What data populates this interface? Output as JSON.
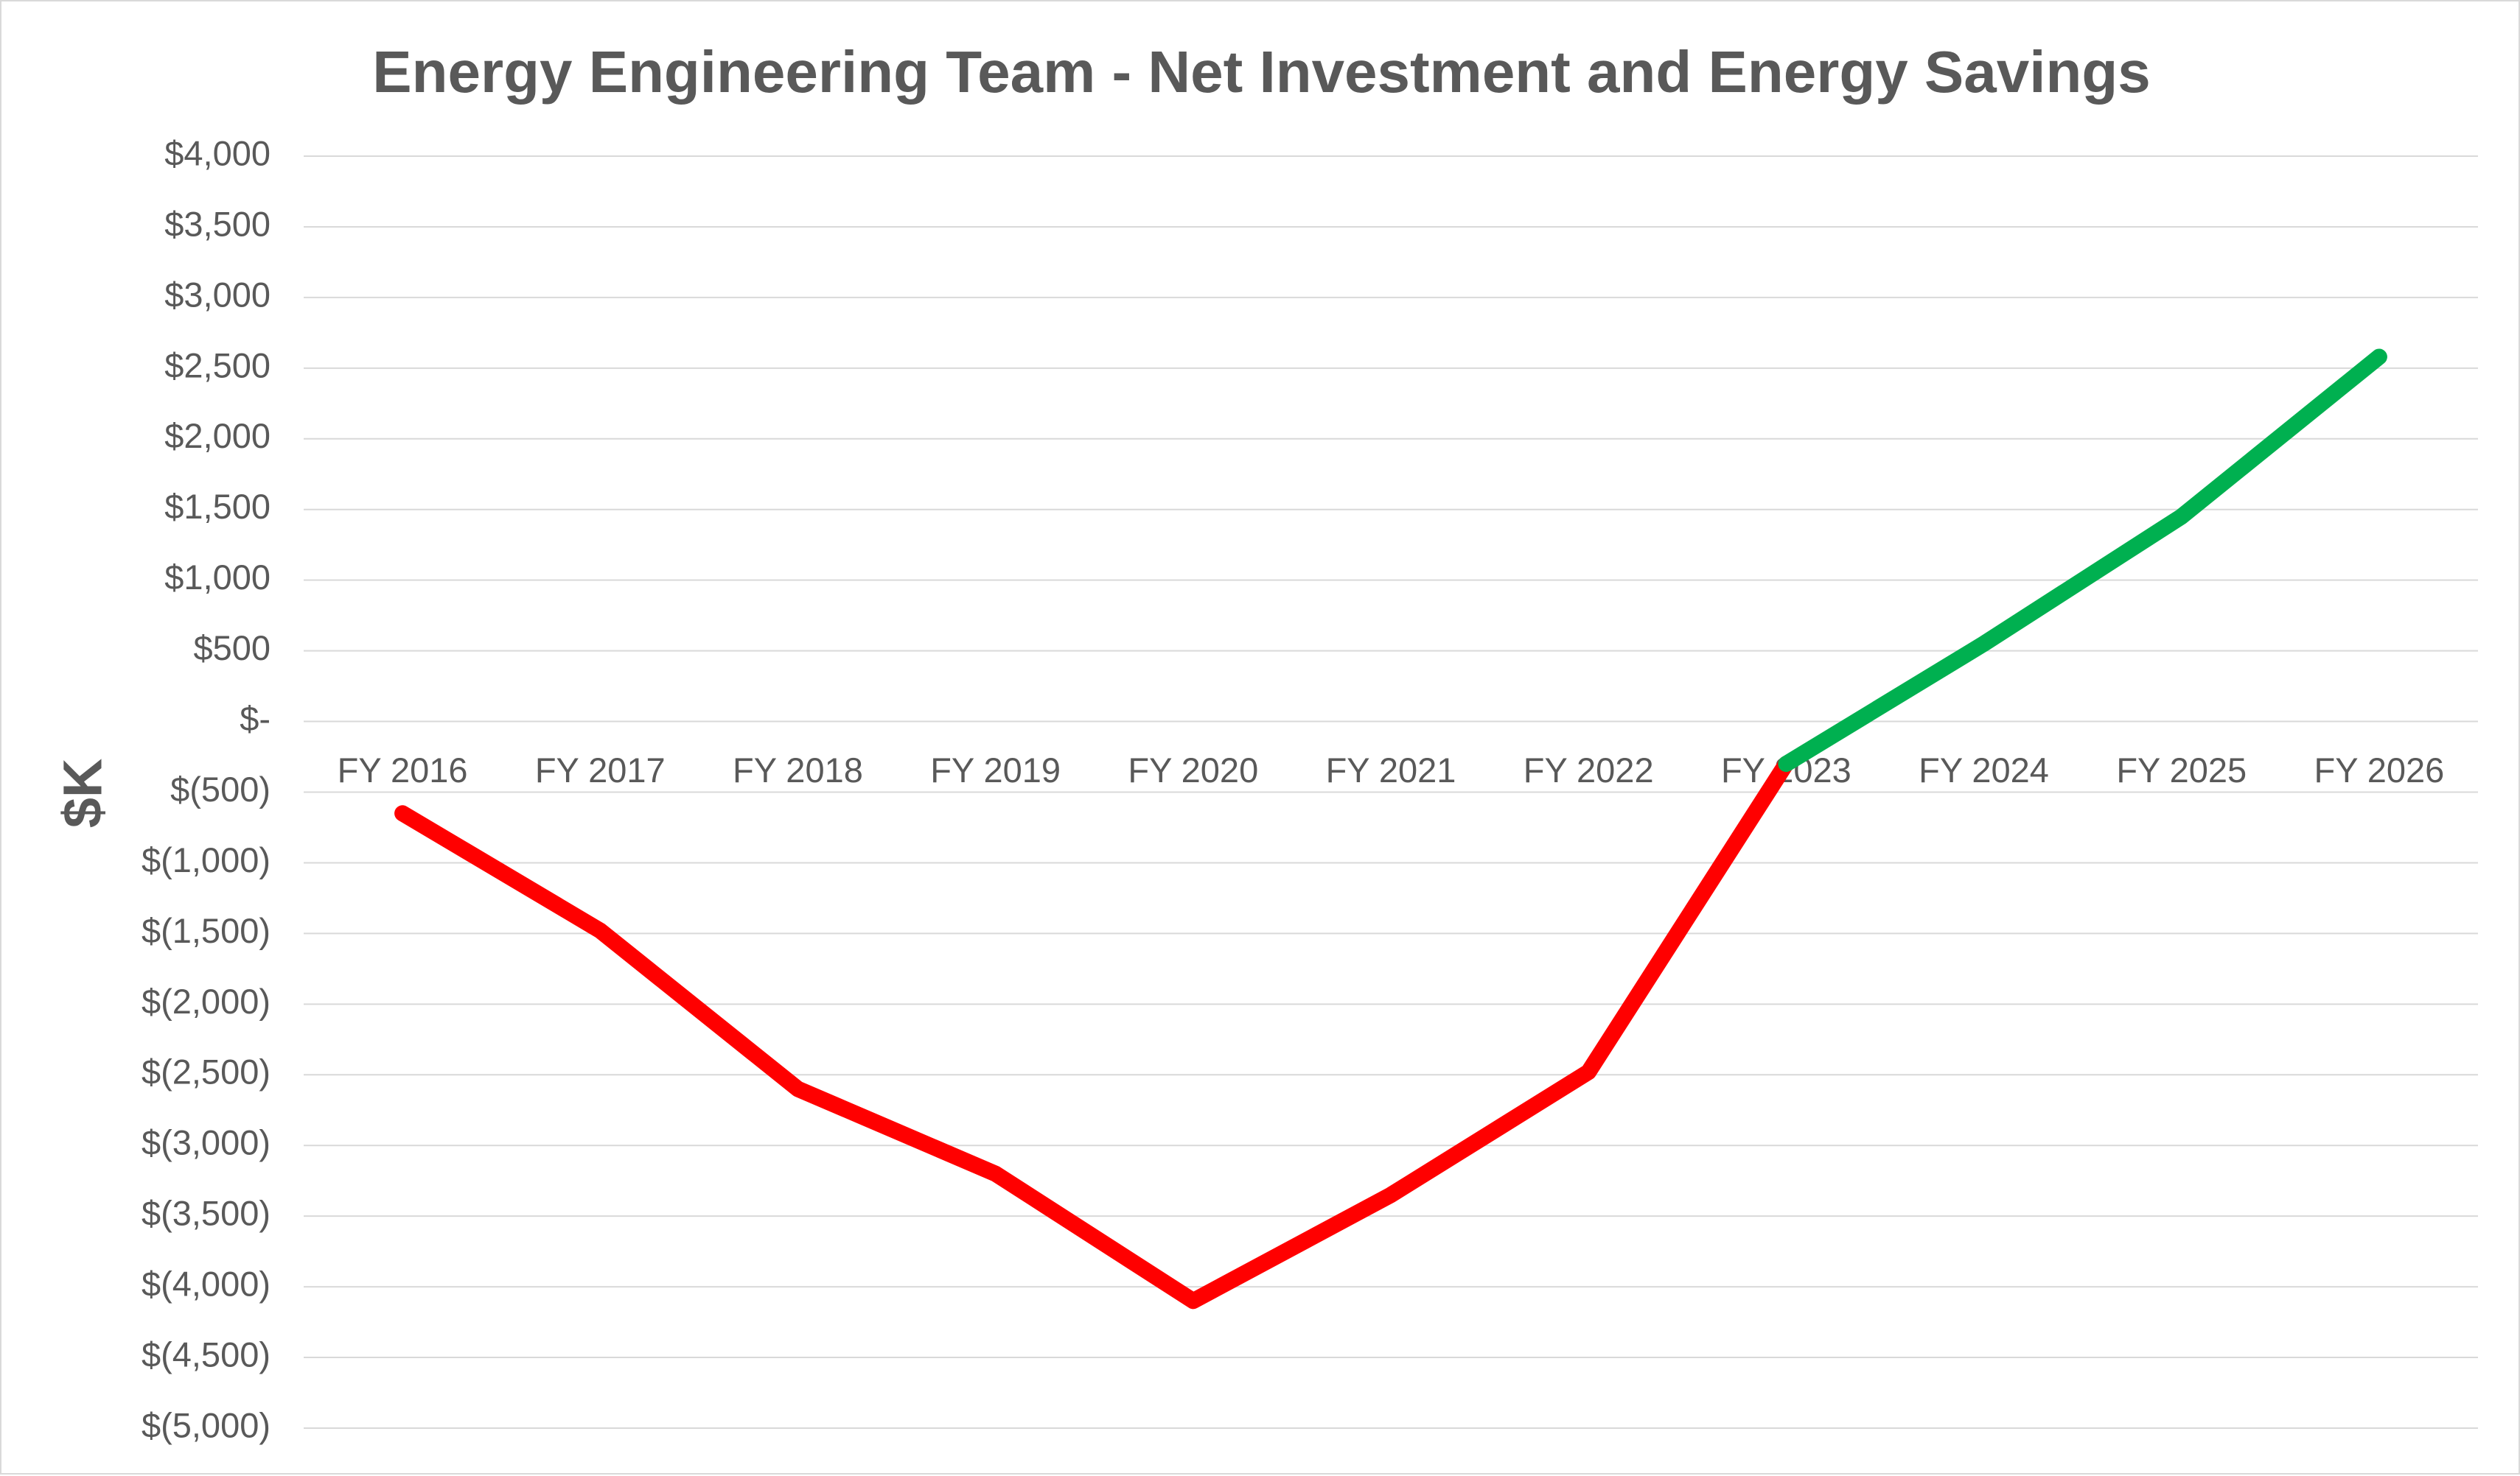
{
  "chart_data": {
    "type": "line",
    "title": "Energy Engineering Team - Net Investment and Energy Savings",
    "ylabel": "$K",
    "xlabel": "",
    "categories": [
      "FY 2016",
      "FY 2017",
      "FY 2018",
      "FY 2019",
      "FY 2020",
      "FY 2021",
      "FY 2022",
      "FY 2023",
      "FY 2024",
      "FY 2025",
      "FY 2026"
    ],
    "series": [
      {
        "color": "#ff0000",
        "x": [
          "FY 2016",
          "FY 2017",
          "FY 2018",
          "FY 2019",
          "FY 2020",
          "FY 2021",
          "FY 2022",
          "FY 2023"
        ],
        "values": [
          -650,
          -1480,
          -2600,
          -3200,
          -4100,
          -3350,
          -2480,
          -300
        ]
      },
      {
        "color": "#00b050",
        "x": [
          "FY 2023",
          "FY 2024",
          "FY 2025",
          "FY 2026"
        ],
        "values": [
          -300,
          550,
          1450,
          2580
        ]
      }
    ],
    "ylim": [
      -5000,
      4000
    ],
    "yticks": [
      4000,
      3500,
      3000,
      2500,
      2000,
      1500,
      1000,
      500,
      0,
      -500,
      -1000,
      -1500,
      -2000,
      -2500,
      -3000,
      -3500,
      -4000,
      -4500,
      -5000
    ],
    "ytick_labels": [
      "$4,000",
      "$3,500",
      "$3,000",
      "$2,500",
      "$2,000",
      "$1,500",
      "$1,000",
      "$500",
      "$-",
      "$(500)",
      "$(1,000)",
      "$(1,500)",
      "$(2,000)",
      "$(2,500)",
      "$(3,000)",
      "$(3,500)",
      "$(4,000)",
      "$(4,500)",
      "$(5,000)"
    ],
    "grid": true,
    "legend": "none",
    "gridline_color": "#d9d9d9"
  }
}
